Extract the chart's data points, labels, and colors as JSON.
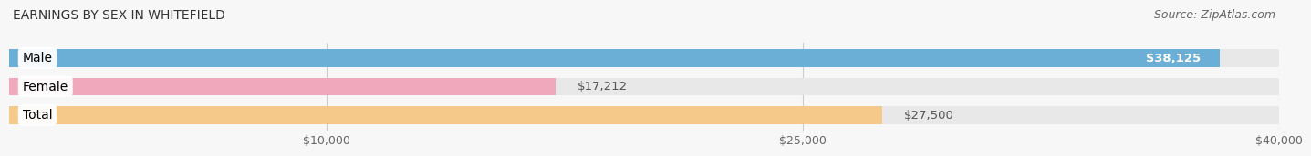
{
  "title": "EARNINGS BY SEX IN WHITEFIELD",
  "source": "Source: ZipAtlas.com",
  "categories": [
    "Male",
    "Female",
    "Total"
  ],
  "values": [
    38125,
    17212,
    27500
  ],
  "bar_colors": [
    "#6baed6",
    "#f0a8bc",
    "#f5c98a"
  ],
  "bar_bg_colors": [
    "#e8e8e8",
    "#e8e8e8",
    "#e8e8e8"
  ],
  "value_labels": [
    "$38,125",
    "$17,212",
    "$27,500"
  ],
  "label_inside": [
    true,
    false,
    false
  ],
  "xmin": 0,
  "xmax": 40000,
  "xticks": [
    10000,
    25000,
    40000
  ],
  "xticklabels": [
    "$10,000",
    "$25,000",
    "$40,000"
  ],
  "title_fontsize": 10,
  "source_fontsize": 9,
  "label_fontsize": 9.5,
  "cat_fontsize": 10,
  "bar_height": 0.62,
  "background_color": "#f7f7f7",
  "bar_label_colors": [
    "white",
    "#555555",
    "#555555"
  ]
}
